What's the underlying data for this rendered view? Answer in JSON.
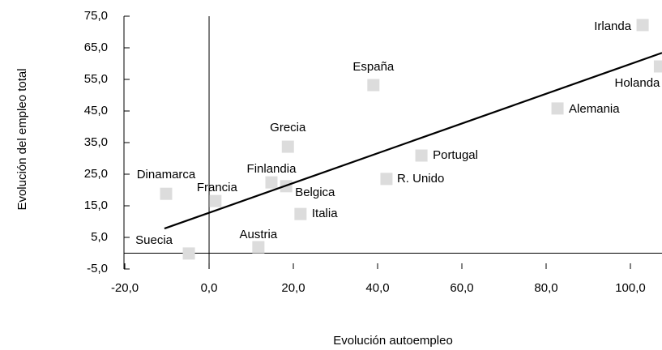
{
  "chart_data": {
    "type": "scatter",
    "xlabel": "Evolución autoempleo",
    "ylabel": "Evolución del empleo total",
    "labels": [
      "Irlanda",
      "Holanda",
      "España",
      "Alemania",
      "Grecia",
      "Portugal",
      "Dinamarca",
      "Finlandia",
      "Belgica",
      "Francia",
      "R. Unido",
      "Italia",
      "Austria",
      "Suecia"
    ],
    "x": [
      102.9,
      107,
      39.0,
      82.7,
      18.7,
      50.4,
      -10.2,
      14.8,
      18.3,
      1.5,
      42.1,
      21.7,
      11.7,
      -4.8
    ],
    "y": [
      72.2,
      59.1,
      53.2,
      45.8,
      33.7,
      30.9,
      18.8,
      22.4,
      21.2,
      16.5,
      23.5,
      12.4,
      1.9,
      -0.1
    ],
    "color": "#dcdcdc",
    "trendline": {
      "x": [
        -10.6,
        107.5
      ],
      "y": [
        7.8,
        63.4
      ],
      "color": "#000000"
    },
    "xlim": [
      -20.2,
      107.5
    ],
    "ylim": [
      -5,
      75
    ],
    "xticks": [
      {
        "value": -20,
        "label": "-20,0"
      },
      {
        "value": 0,
        "label": "0,0"
      },
      {
        "value": 20,
        "label": "20,0"
      },
      {
        "value": 40,
        "label": "40,0"
      },
      {
        "value": 60,
        "label": "60,0"
      },
      {
        "value": 80,
        "label": "80,0"
      },
      {
        "value": 100,
        "label": "100,0"
      }
    ],
    "yticks": [
      {
        "value": -5,
        "label": "-5,0"
      },
      {
        "value": 5,
        "label": "5,0"
      },
      {
        "value": 15,
        "label": "15,0"
      },
      {
        "value": 25,
        "label": "25,0"
      },
      {
        "value": 35,
        "label": "35,0"
      },
      {
        "value": 45,
        "label": "45,0"
      },
      {
        "value": 55,
        "label": "55,0"
      },
      {
        "value": 65,
        "label": "65,0"
      },
      {
        "value": 75,
        "label": "75,0"
      }
    ]
  }
}
